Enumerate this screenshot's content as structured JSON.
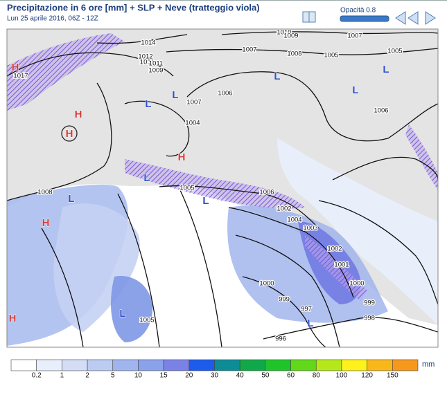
{
  "header": {
    "title": "Precipitazione in 6 ore [mm] + SLP + Neve (tratteggio viola)",
    "subtitle": "Lun 25 aprile 2016, 06Z - 12Z",
    "opacity": "Opacità 0.8"
  },
  "map": {
    "isobar_labels": [
      1014,
      1011,
      1010,
      1009,
      1007,
      1012,
      1011,
      1009,
      1017,
      1007,
      1008,
      1005,
      1005,
      1006,
      1007,
      1004,
      1006,
      1008,
      1005,
      1006,
      1002,
      1004,
      1003,
      1002,
      1001,
      1000,
      1000,
      999,
      999,
      997,
      998,
      996,
      1005
    ],
    "pressure_centers": [
      "H",
      "H",
      "H",
      "H",
      "H",
      "H",
      "L",
      "L",
      "L",
      "L",
      "L",
      "L",
      "L",
      "L",
      "L",
      "L"
    ]
  },
  "legend": {
    "labels": [
      0.2,
      1,
      2,
      5,
      10,
      15,
      20,
      30,
      40,
      50,
      60,
      80,
      100,
      120,
      150
    ],
    "unit": "mm",
    "colors": [
      "#ffffff",
      "#e8eefa",
      "#d3ddf6",
      "#bccbf2",
      "#a0b5ee",
      "#8aa2ea",
      "#7b82e6",
      "#1d5cea",
      "#0e8c96",
      "#11a84a",
      "#1fc42a",
      "#62d81a",
      "#b4e81a",
      "#fff21a",
      "#f8b81a",
      "#f5981c"
    ]
  }
}
